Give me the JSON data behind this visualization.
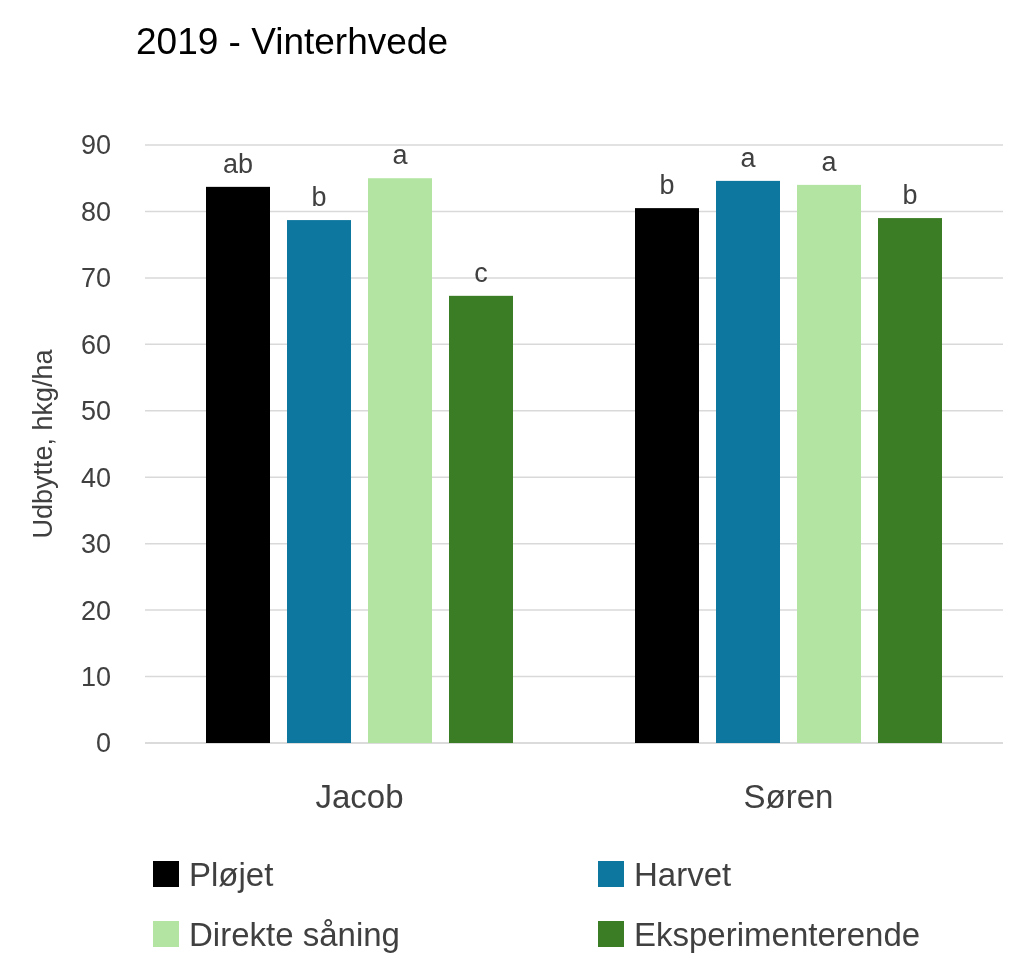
{
  "chart_data": {
    "type": "bar",
    "title": "2019 - Vinterhvede",
    "ylabel": "Udbytte, hkg/ha",
    "categories": [
      "Jacob",
      "Søren"
    ],
    "series": [
      {
        "name": "Pløjet",
        "color": "#000000",
        "values": [
          83.7,
          80.5
        ],
        "value_labels": [
          "ab",
          "b"
        ]
      },
      {
        "name": "Harvet",
        "color": "#0e77a0",
        "values": [
          78.7,
          84.6
        ],
        "value_labels": [
          "b",
          "a"
        ]
      },
      {
        "name": "Direkte såning",
        "color": "#b4e4a2",
        "values": [
          85.0,
          84.0
        ],
        "value_labels": [
          "a",
          "a"
        ]
      },
      {
        "name": "Eksperimenterende",
        "color": "#3a7d24",
        "values": [
          67.3,
          79.0
        ],
        "value_labels": [
          "c",
          "b"
        ]
      }
    ],
    "ylim": [
      0,
      90
    ],
    "yticks": [
      0,
      10,
      20,
      30,
      40,
      50,
      60,
      70,
      80,
      90
    ],
    "grid": "y",
    "legend": "bottom"
  }
}
